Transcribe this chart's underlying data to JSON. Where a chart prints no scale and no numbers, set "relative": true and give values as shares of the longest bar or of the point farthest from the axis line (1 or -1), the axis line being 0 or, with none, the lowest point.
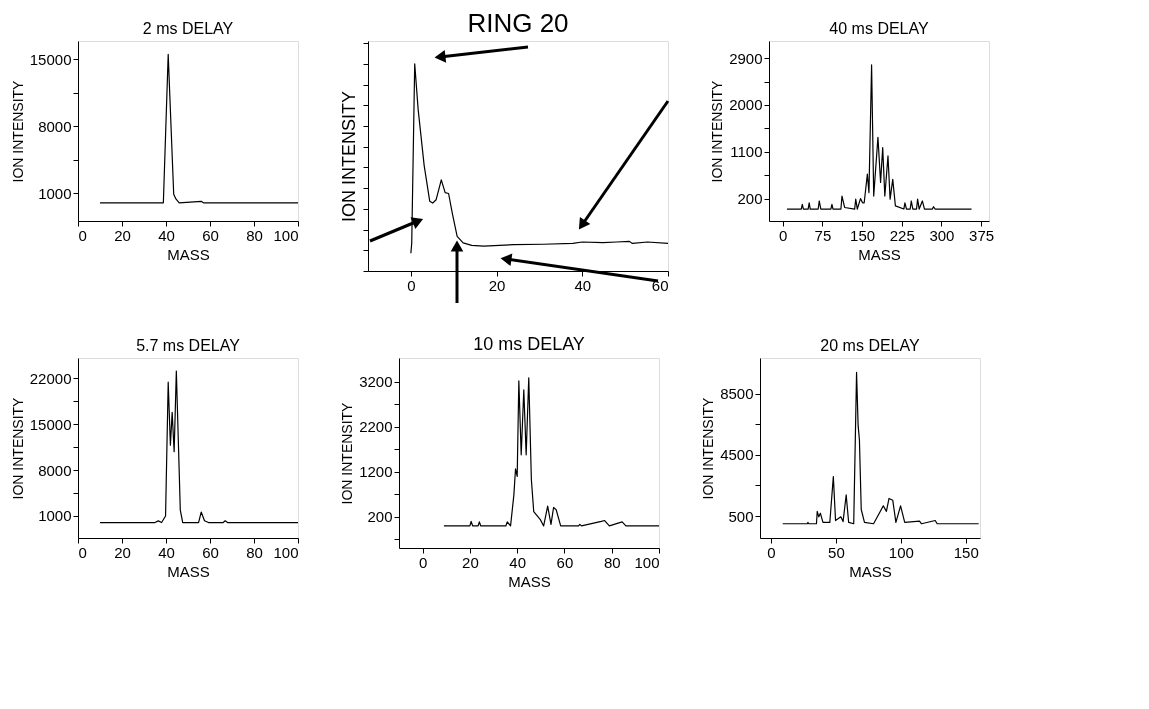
{
  "chart_data": [
    {
      "type": "line",
      "title": "2 ms DELAY",
      "xlabel": "MASS",
      "ylabel": "ION INTENSITY",
      "xlim": [
        0,
        100
      ],
      "xticks": [
        0,
        20,
        40,
        60,
        80,
        100
      ],
      "ylim": [
        -1900,
        16900
      ],
      "yticks": [
        1000,
        {
          "value": 4500,
          "label": null
        },
        8000,
        {
          "value": 11500,
          "label": null
        },
        15000
      ],
      "series": [
        {
          "color": "#000000",
          "x": [
            10,
            38.8,
            41,
            43.5,
            44.5,
            46,
            56,
            57,
            100
          ],
          "values": [
            0,
            0,
            15500,
            900,
            400,
            0,
            150,
            0,
            0
          ]
        }
      ]
    },
    {
      "type": "line",
      "title": "RING 20",
      "ylabel": "ION INTENSITY",
      "relative": true,
      "tick_labels": "x",
      "xlim": [
        -10,
        60
      ],
      "xticks": [
        0,
        20,
        40,
        60
      ],
      "series": [
        {
          "color": "#000000",
          "x": [
            0,
            0.2,
            0.9,
            1.7,
            3.1,
            4.4,
            5.1,
            5.9,
            7.1,
            8,
            8.8,
            9.7,
            10.8,
            12.2,
            14.2,
            17,
            24,
            30.9,
            37.8,
            40,
            44.8,
            48,
            51,
            51.7,
            55.2,
            60
          ],
          "values": [
            0.086,
            0.133,
            1.0,
            0.78,
            0.51,
            0.337,
            0.328,
            0.344,
            0.44,
            0.378,
            0.374,
            0.276,
            0.167,
            0.136,
            0.124,
            0.12,
            0.127,
            0.129,
            0.133,
            0.14,
            0.137,
            0.14,
            0.143,
            0.133,
            0.14,
            0.133
          ]
        }
      ]
    },
    {
      "type": "line",
      "title": "40 ms DELAY",
      "xlabel": "MASS",
      "ylabel": "ION INTENSITY",
      "xlim": [
        -26,
        390
      ],
      "xticks": [
        0,
        75,
        150,
        225,
        300,
        375
      ],
      "ylim": [
        -230,
        3230
      ],
      "yticks": [
        200,
        {
          "value": 650,
          "label": null
        },
        1100,
        {
          "value": 1550,
          "label": null
        },
        2000,
        {
          "value": 2450,
          "label": null
        },
        2900
      ],
      "series": [
        {
          "color": "#000000",
          "x": [
            8,
            35,
            37,
            39,
            48,
            50,
            52,
            67,
            69,
            72,
            91,
            93,
            95,
            110,
            112,
            117,
            136,
            138,
            141,
            147,
            151,
            154,
            160,
            163,
            168,
            172,
            180,
            185,
            189,
            193,
            199,
            203,
            208,
            213,
            229,
            231,
            234,
            241,
            243,
            246,
            253,
            255,
            258,
            264,
            268,
            283,
            285,
            288,
            309,
            357
          ],
          "values": [
            0,
            0,
            90,
            0,
            0,
            120,
            0,
            0,
            155,
            0,
            0,
            90,
            0,
            0,
            250,
            30,
            0,
            190,
            0,
            200,
            120,
            120,
            670,
            315,
            2770,
            250,
            1380,
            510,
            1180,
            250,
            1020,
            190,
            570,
            60,
            0,
            120,
            0,
            0,
            155,
            0,
            0,
            190,
            0,
            155,
            0,
            0,
            45,
            0,
            0,
            0
          ]
        }
      ]
    },
    {
      "type": "line",
      "title": "5.7 ms DELAY",
      "xlabel": "MASS",
      "ylabel": "ION INTENSITY",
      "xlim": [
        0,
        100
      ],
      "xticks": [
        0,
        20,
        40,
        60,
        80,
        100
      ],
      "ylim": [
        -2360,
        25090
      ],
      "yticks": [
        1000,
        {
          "value": 4500,
          "label": null
        },
        8000,
        {
          "value": 11500,
          "label": null
        },
        15000,
        {
          "value": 18500,
          "label": null
        },
        22000
      ],
      "series": [
        {
          "color": "#000000",
          "x": [
            10,
            35,
            36.5,
            38,
            39.8,
            41,
            42,
            42.8,
            43.7,
            44.7,
            46.5,
            47.6,
            54.8,
            56,
            57.5,
            59.3,
            66,
            66.9,
            68,
            100
          ],
          "values": [
            0,
            0,
            250,
            0,
            1000,
            21400,
            11800,
            16800,
            10800,
            23100,
            1900,
            0,
            0,
            1600,
            270,
            0,
            0,
            270,
            0,
            0
          ]
        }
      ]
    },
    {
      "type": "line",
      "title": "10 ms DELAY",
      "xlabel": "MASS",
      "ylabel": "ION INTENSITY",
      "xlim": [
        -10,
        100
      ],
      "xticks": [
        0,
        20,
        40,
        60,
        80,
        100
      ],
      "ylim": [
        -490,
        3730
      ],
      "yticks": [
        {
          "value": -300,
          "label": null
        },
        200,
        {
          "value": 700,
          "label": null
        },
        1200,
        {
          "value": 1700,
          "label": null
        },
        2200,
        {
          "value": 2700,
          "label": null
        },
        3200
      ],
      "series": [
        {
          "color": "#000000",
          "x": [
            9,
            20,
            20.5,
            21.2,
            23.5,
            24,
            24.6,
            35.2,
            35.8,
            37.2,
            38.6,
            39.3,
            40,
            40.7,
            41.7,
            42.8,
            43.8,
            44.9,
            46,
            47,
            49.8,
            51.2,
            52.9,
            54.3,
            55.4,
            56.5,
            58.4,
            66,
            66.5,
            67.2,
            75.6,
            77,
            79,
            84.4,
            86,
            100
          ],
          "values": [
            0,
            0,
            100,
            0,
            0,
            90,
            0,
            0,
            90,
            0,
            690,
            1270,
            1100,
            3220,
            1580,
            3020,
            1580,
            3290,
            1030,
            320,
            140,
            0,
            440,
            35,
            410,
            360,
            0,
            0,
            35,
            0,
            100,
            120,
            0,
            90,
            0,
            0
          ]
        }
      ]
    },
    {
      "type": "line",
      "title": "20 ms DELAY",
      "xlabel": "MASS",
      "ylabel": "ION INTENSITY",
      "xlim": [
        -8.5,
        161
      ],
      "xticks": [
        0,
        50,
        100,
        150
      ],
      "ylim": [
        -930,
        10820
      ],
      "yticks": [
        500,
        {
          "value": 2500,
          "label": null
        },
        4500,
        {
          "value": 6500,
          "label": null
        },
        8500
      ],
      "series": [
        {
          "color": "#000000",
          "x": [
            9,
            28,
            28.4,
            29,
            35,
            35.6,
            36.8,
            38,
            40,
            45.3,
            48,
            49.7,
            53.8,
            55.5,
            57.9,
            59.8,
            63.7,
            65.9,
            67.1,
            68.1,
            69.5,
            72,
            79,
            86.5,
            88.9,
            90.9,
            93.8,
            96.2,
            99.8,
            103,
            114.4,
            116,
            126.5,
            128,
            160
          ],
          "values": [
            0,
            0,
            90,
            0,
            0,
            810,
            450,
            690,
            90,
            90,
            3080,
            210,
            450,
            140,
            1880,
            90,
            0,
            9880,
            6420,
            5470,
            930,
            90,
            0,
            1170,
            810,
            1650,
            1530,
            90,
            1170,
            90,
            170,
            0,
            210,
            0,
            0
          ]
        }
      ]
    }
  ]
}
